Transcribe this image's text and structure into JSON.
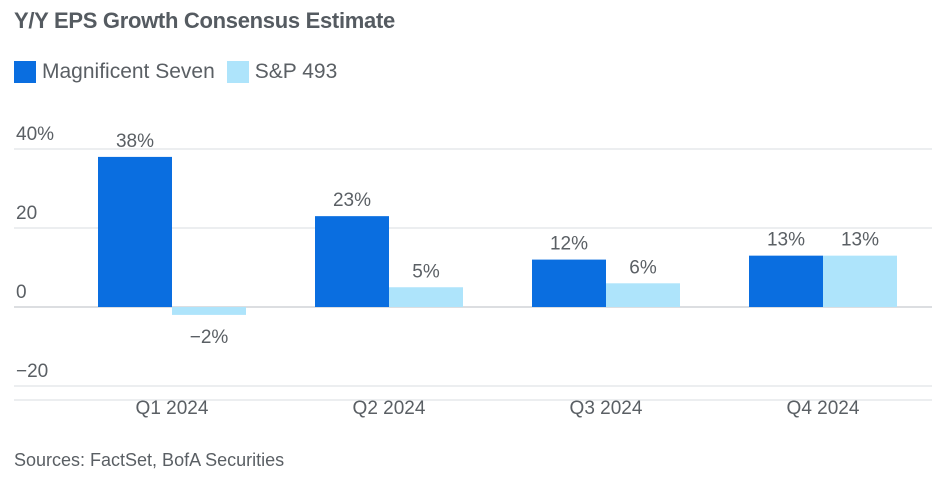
{
  "chart_data": {
    "type": "bar",
    "title": "Y/Y EPS Growth Consensus Estimate",
    "categories": [
      "Q1 2024",
      "Q2 2024",
      "Q3 2024",
      "Q4 2024"
    ],
    "series": [
      {
        "name": "Magnificent Seven",
        "color": "#0a6ee0",
        "values": [
          38,
          23,
          12,
          13
        ],
        "labels": [
          "38%",
          "23%",
          "12%",
          "13%"
        ]
      },
      {
        "name": "S&P 493",
        "color": "#aee4fb",
        "values": [
          -2,
          5,
          6,
          13
        ],
        "labels": [
          "−2%",
          "5%",
          "6%",
          "13%"
        ]
      }
    ],
    "ylim": [
      -20,
      40
    ],
    "yticks": [
      {
        "value": 40,
        "label": "40%"
      },
      {
        "value": 20,
        "label": "20"
      },
      {
        "value": 0,
        "label": "0"
      },
      {
        "value": -20,
        "label": "−20"
      }
    ],
    "grid": true,
    "legend": "top-left",
    "source": "Sources: FactSet, BofA Securities"
  }
}
